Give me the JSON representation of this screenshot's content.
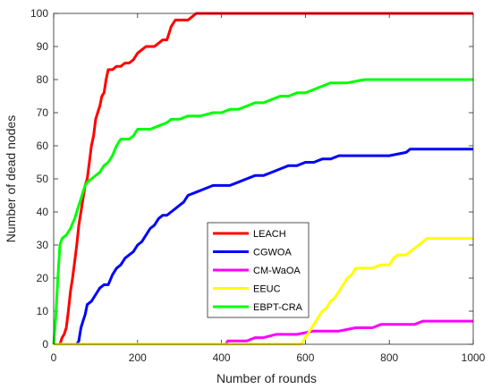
{
  "chart_data": {
    "type": "line",
    "title": "",
    "xlabel": "Number of rounds",
    "ylabel": "Number of dead nodes",
    "xlim": [
      0,
      1000
    ],
    "ylim": [
      0,
      100
    ],
    "xticks": [
      0,
      200,
      400,
      600,
      800,
      1000
    ],
    "yticks": [
      0,
      10,
      20,
      30,
      40,
      50,
      60,
      70,
      80,
      90,
      100
    ],
    "grid": false,
    "legend_position": "lower-center",
    "series": [
      {
        "name": "LEACH",
        "color": "#ff0000",
        "points": [
          [
            15,
            0
          ],
          [
            20,
            2
          ],
          [
            25,
            3
          ],
          [
            30,
            5
          ],
          [
            35,
            10
          ],
          [
            40,
            16
          ],
          [
            45,
            20
          ],
          [
            50,
            25
          ],
          [
            55,
            30
          ],
          [
            60,
            36
          ],
          [
            65,
            40
          ],
          [
            70,
            44
          ],
          [
            75,
            48
          ],
          [
            80,
            50
          ],
          [
            85,
            55
          ],
          [
            90,
            60
          ],
          [
            95,
            63
          ],
          [
            100,
            68
          ],
          [
            105,
            70
          ],
          [
            110,
            72
          ],
          [
            115,
            75
          ],
          [
            120,
            76
          ],
          [
            125,
            80
          ],
          [
            130,
            83
          ],
          [
            140,
            83
          ],
          [
            150,
            84
          ],
          [
            160,
            84
          ],
          [
            170,
            85
          ],
          [
            180,
            85
          ],
          [
            190,
            86
          ],
          [
            200,
            88
          ],
          [
            210,
            89
          ],
          [
            220,
            90
          ],
          [
            240,
            90
          ],
          [
            250,
            91
          ],
          [
            260,
            92
          ],
          [
            270,
            92
          ],
          [
            275,
            94
          ],
          [
            280,
            96
          ],
          [
            285,
            97
          ],
          [
            290,
            98
          ],
          [
            300,
            98
          ],
          [
            320,
            98
          ],
          [
            330,
            99
          ],
          [
            340,
            100
          ],
          [
            1000,
            100
          ]
        ]
      },
      {
        "name": "CGWOA",
        "color": "#0000ff",
        "points": [
          [
            55,
            0
          ],
          [
            60,
            1
          ],
          [
            65,
            5
          ],
          [
            70,
            7
          ],
          [
            75,
            9
          ],
          [
            80,
            12
          ],
          [
            90,
            13
          ],
          [
            100,
            15
          ],
          [
            110,
            17
          ],
          [
            120,
            18
          ],
          [
            130,
            18
          ],
          [
            140,
            21
          ],
          [
            150,
            23
          ],
          [
            160,
            24
          ],
          [
            170,
            26
          ],
          [
            180,
            27
          ],
          [
            190,
            28
          ],
          [
            200,
            30
          ],
          [
            210,
            31
          ],
          [
            220,
            33
          ],
          [
            230,
            35
          ],
          [
            240,
            36
          ],
          [
            250,
            38
          ],
          [
            260,
            39
          ],
          [
            270,
            39
          ],
          [
            280,
            40
          ],
          [
            290,
            41
          ],
          [
            300,
            42
          ],
          [
            310,
            43
          ],
          [
            320,
            45
          ],
          [
            340,
            46
          ],
          [
            360,
            47
          ],
          [
            380,
            48
          ],
          [
            400,
            48
          ],
          [
            420,
            48
          ],
          [
            440,
            49
          ],
          [
            460,
            50
          ],
          [
            480,
            51
          ],
          [
            500,
            51
          ],
          [
            520,
            52
          ],
          [
            540,
            53
          ],
          [
            560,
            54
          ],
          [
            580,
            54
          ],
          [
            600,
            55
          ],
          [
            620,
            55
          ],
          [
            640,
            56
          ],
          [
            660,
            56
          ],
          [
            680,
            57
          ],
          [
            700,
            57
          ],
          [
            760,
            57
          ],
          [
            800,
            57
          ],
          [
            840,
            58
          ],
          [
            850,
            59
          ],
          [
            900,
            59
          ],
          [
            1000,
            59
          ]
        ]
      },
      {
        "name": "CM-WaOA",
        "color": "#ff00ff",
        "points": [
          [
            0,
            0
          ],
          [
            410,
            0
          ],
          [
            415,
            1
          ],
          [
            460,
            1
          ],
          [
            480,
            2
          ],
          [
            500,
            2
          ],
          [
            530,
            3
          ],
          [
            580,
            3
          ],
          [
            620,
            4
          ],
          [
            660,
            4
          ],
          [
            680,
            4
          ],
          [
            720,
            5
          ],
          [
            760,
            5
          ],
          [
            780,
            6
          ],
          [
            820,
            6
          ],
          [
            860,
            6
          ],
          [
            880,
            7
          ],
          [
            940,
            7
          ],
          [
            1000,
            7
          ]
        ]
      },
      {
        "name": "EEUC",
        "color": "#ffff00",
        "points": [
          [
            0,
            0
          ],
          [
            590,
            0
          ],
          [
            600,
            2
          ],
          [
            610,
            4
          ],
          [
            620,
            6
          ],
          [
            630,
            8
          ],
          [
            640,
            10
          ],
          [
            650,
            11
          ],
          [
            660,
            13
          ],
          [
            670,
            14
          ],
          [
            680,
            16
          ],
          [
            690,
            18
          ],
          [
            700,
            20
          ],
          [
            710,
            21
          ],
          [
            720,
            23
          ],
          [
            740,
            23
          ],
          [
            760,
            23
          ],
          [
            780,
            24
          ],
          [
            800,
            24
          ],
          [
            810,
            26
          ],
          [
            820,
            27
          ],
          [
            840,
            27
          ],
          [
            850,
            28
          ],
          [
            860,
            29
          ],
          [
            870,
            30
          ],
          [
            880,
            31
          ],
          [
            890,
            32
          ],
          [
            900,
            32
          ],
          [
            940,
            32
          ],
          [
            1000,
            32
          ]
        ]
      },
      {
        "name": "EBPT-CRA",
        "color": "#00ff00",
        "points": [
          [
            0,
            0
          ],
          [
            5,
            8
          ],
          [
            10,
            20
          ],
          [
            15,
            30
          ],
          [
            20,
            32
          ],
          [
            30,
            33
          ],
          [
            40,
            35
          ],
          [
            50,
            38
          ],
          [
            55,
            40
          ],
          [
            60,
            42
          ],
          [
            65,
            44
          ],
          [
            70,
            46
          ],
          [
            75,
            48
          ],
          [
            80,
            49
          ],
          [
            90,
            50
          ],
          [
            100,
            51
          ],
          [
            110,
            52
          ],
          [
            120,
            54
          ],
          [
            130,
            55
          ],
          [
            140,
            57
          ],
          [
            150,
            60
          ],
          [
            160,
            62
          ],
          [
            180,
            62
          ],
          [
            190,
            63
          ],
          [
            200,
            65
          ],
          [
            230,
            65
          ],
          [
            250,
            66
          ],
          [
            270,
            67
          ],
          [
            280,
            68
          ],
          [
            300,
            68
          ],
          [
            320,
            69
          ],
          [
            350,
            69
          ],
          [
            380,
            70
          ],
          [
            400,
            70
          ],
          [
            420,
            71
          ],
          [
            440,
            71
          ],
          [
            460,
            72
          ],
          [
            480,
            73
          ],
          [
            500,
            73
          ],
          [
            520,
            74
          ],
          [
            540,
            75
          ],
          [
            560,
            75
          ],
          [
            580,
            76
          ],
          [
            600,
            76
          ],
          [
            620,
            77
          ],
          [
            640,
            78
          ],
          [
            660,
            79
          ],
          [
            700,
            79
          ],
          [
            740,
            80
          ],
          [
            800,
            80
          ],
          [
            1000,
            80
          ]
        ]
      }
    ]
  }
}
